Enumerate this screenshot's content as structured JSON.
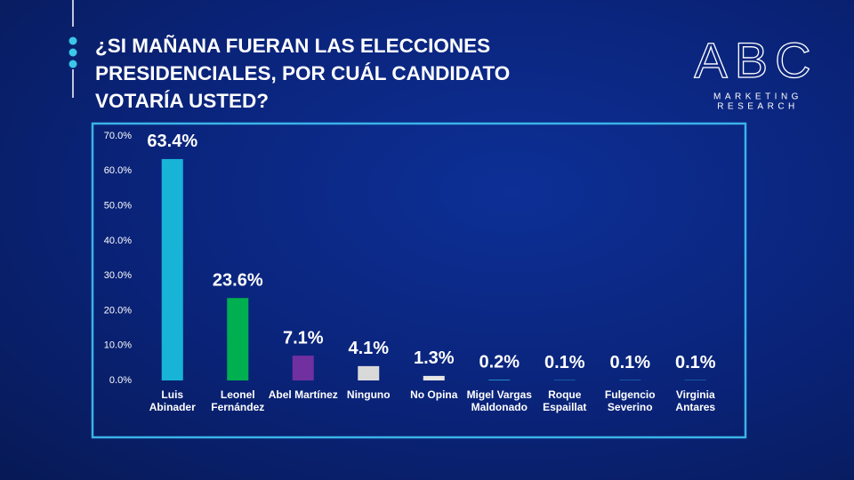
{
  "header": {
    "title": "¿SI MAÑANA FUERAN LAS ELECCIONES PRESIDENCIALES, POR  CUÁL CANDIDATO VOTARÍA USTED?"
  },
  "logo": {
    "name": "ABC",
    "line_1": "MARKETING",
    "line_2": "RESEARCH"
  },
  "chart_data": {
    "type": "bar",
    "categories": [
      "Luis Abinader",
      "Leonel Fernández",
      "Abel Martínez",
      "Ninguno",
      "No Opina",
      "Migel Vargas Maldonado",
      "Roque Espaillat",
      "Fulgencio Severino",
      "Virginia Antares"
    ],
    "values": [
      63.4,
      23.6,
      7.1,
      4.1,
      1.3,
      0.2,
      0.1,
      0.1,
      0.1
    ],
    "value_labels": [
      "63.4%",
      "23.6%",
      "7.1%",
      "4.1%",
      "1.3%",
      "0.2%",
      "0.1%",
      "0.1%",
      "0.1%"
    ],
    "colors": [
      "#18b4d8",
      "#00b050",
      "#7030a0",
      "#d9d9d9",
      "#e6e6e6",
      "#2aa8d4",
      "#2aa8d4",
      "#2aa8d4",
      "#2aa8d4"
    ],
    "ylim": [
      0,
      70
    ],
    "yticks": [
      {
        "value": 0,
        "label": "0.0%"
      },
      {
        "value": 10,
        "label": "10.0%"
      },
      {
        "value": 20,
        "label": "20.0%"
      },
      {
        "value": 30,
        "label": "30.0%"
      },
      {
        "value": 40,
        "label": "40.0%"
      },
      {
        "value": 50,
        "label": "50.0%"
      },
      {
        "value": 60,
        "label": "60.0%"
      },
      {
        "value": 70,
        "label": "70.0%"
      }
    ],
    "grid": false
  }
}
